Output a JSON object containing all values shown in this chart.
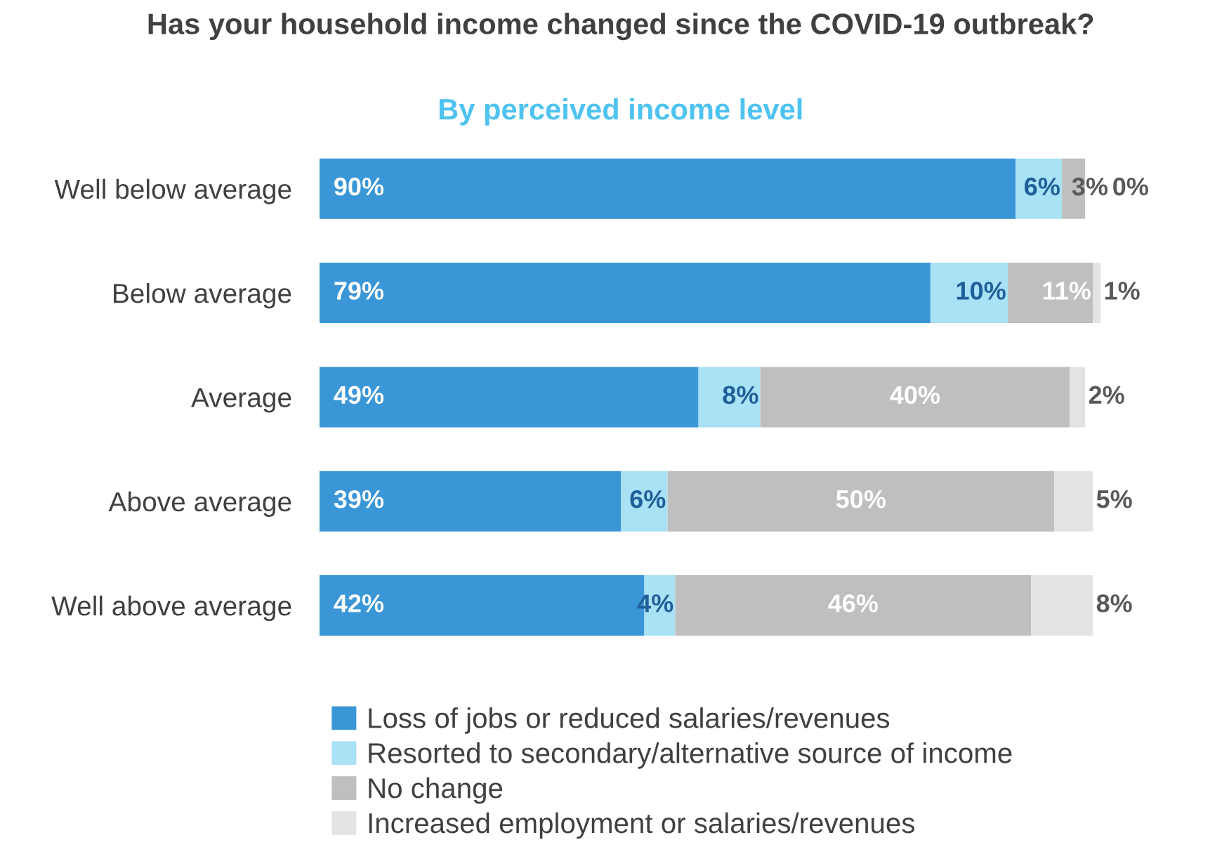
{
  "chart_data": {
    "type": "bar",
    "orientation": "horizontal",
    "stacked": true,
    "grid": false,
    "legend": "bottom",
    "title": "Has your household income changed since the COVID-19 outbreak?",
    "subtitle": "By perceived income level",
    "categories": [
      "Well below average",
      "Below average",
      "Average",
      "Above average",
      "Well above average"
    ],
    "series": [
      {
        "name": "Loss of jobs or reduced salaries/revenues",
        "color": "#3a96d6",
        "values": [
          90,
          79,
          49,
          39,
          42
        ],
        "value_labels": [
          "90%",
          "79%",
          "49%",
          "39%",
          "42%"
        ]
      },
      {
        "name": "Resorted to secondary/alternative source of income",
        "color": "#a9e1f5",
        "values": [
          6,
          10,
          8,
          6,
          4
        ],
        "value_labels": [
          "6%",
          "10%",
          "8%",
          "6%",
          "4%"
        ]
      },
      {
        "name": "No change",
        "color": "#bfbfbf",
        "values": [
          3,
          11,
          40,
          50,
          46
        ],
        "value_labels": [
          "3%",
          "11%",
          "40%",
          "50%",
          "46%"
        ]
      },
      {
        "name": "Increased employment or salaries/revenues",
        "color": "#e3e3e3",
        "values": [
          0,
          1,
          2,
          5,
          8
        ],
        "value_labels": [
          "0%",
          "1%",
          "2%",
          "5%",
          "8%"
        ]
      }
    ]
  }
}
